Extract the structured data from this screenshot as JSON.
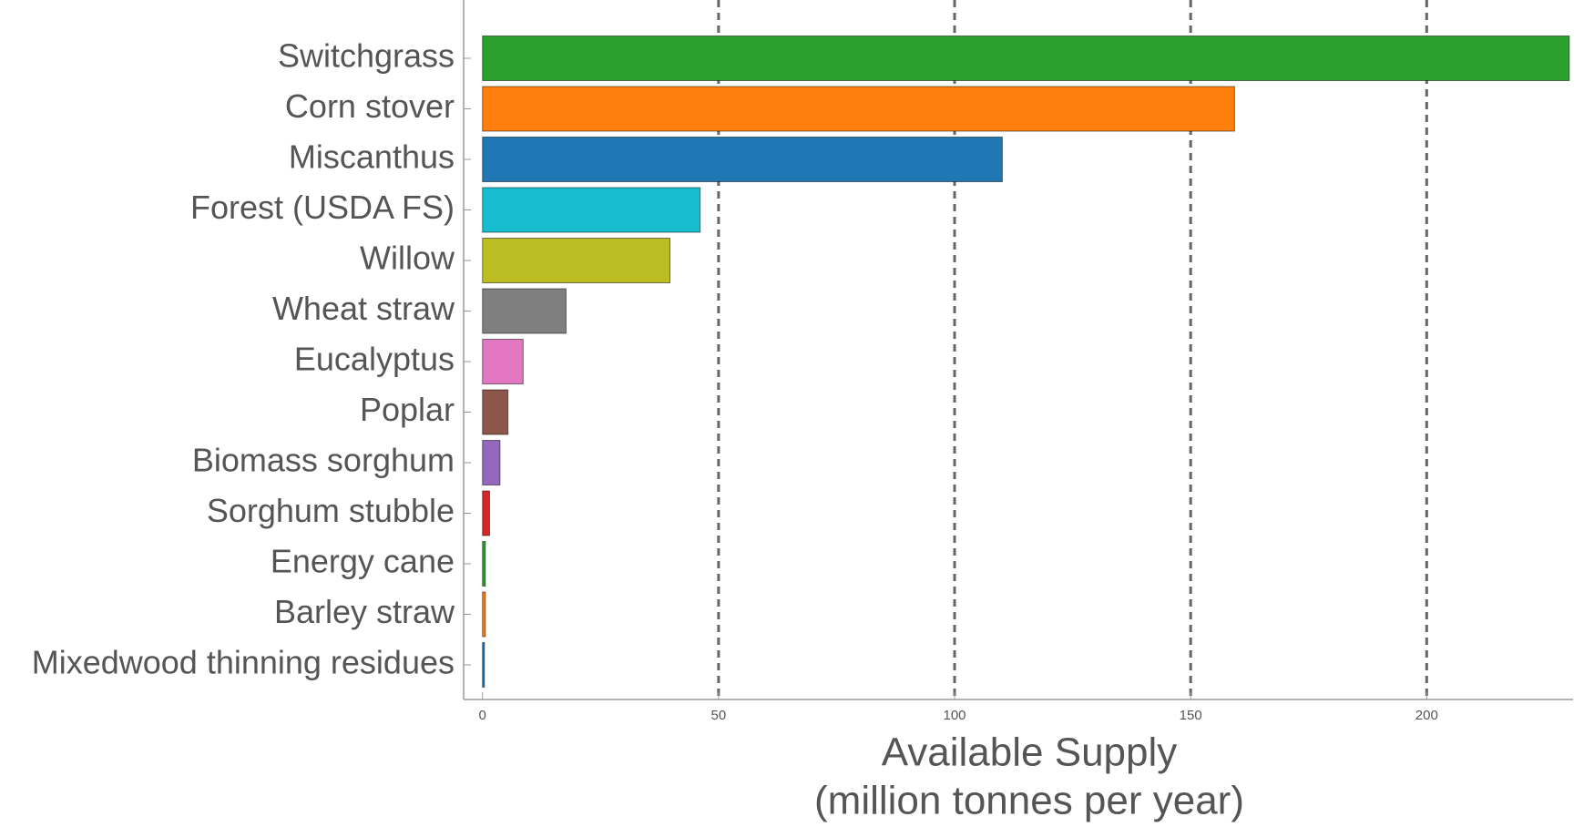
{
  "chart_data": {
    "type": "barh",
    "x_label": [
      "Available Supply",
      "(million tonnes per year)"
    ],
    "categories": [
      "Switchgrass",
      "Corn stover",
      "Miscanthus",
      "Forest (USDA FS)",
      "Willow",
      "Wheat straw",
      "Eucalyptus",
      "Poplar",
      "Biomass sorghum",
      "Sorghum stubble",
      "Energy cane",
      "Barley straw",
      "Mixedwood thinning residues"
    ],
    "values": [
      230.2,
      159.3,
      110.1,
      46.1,
      39.7,
      17.7,
      8.6,
      5.4,
      3.7,
      1.5,
      0.6,
      0.6,
      0.4
    ],
    "colors": [
      "#2ca02c",
      "#ff7f0e",
      "#1f77b4",
      "#17becf",
      "#bcbd22",
      "#7f7f7f",
      "#e377c2",
      "#8c564b",
      "#9467bd",
      "#d62728",
      "#2ca02c",
      "#ff7f0e",
      "#1f77b4"
    ],
    "xlim": [
      -4,
      231
    ],
    "xticks": [
      0,
      50,
      100,
      150,
      200
    ],
    "grid": true
  }
}
